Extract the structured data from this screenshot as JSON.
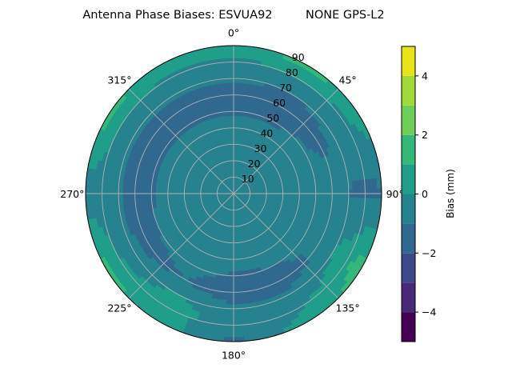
{
  "chart_data": {
    "type": "heatmap",
    "subtype": "polar filled contour",
    "title": "Antenna Phase Biases: ESVUA92         NONE GPS-L2",
    "theta_direction": "clockwise",
    "theta_zero": "north",
    "theta_tick_labels": [
      "0°",
      "45°",
      "90°",
      "135°",
      "180°",
      "225°",
      "270°",
      "315°"
    ],
    "r_tick_labels": [
      "10",
      "20",
      "30",
      "40",
      "50",
      "60",
      "70",
      "80",
      "90"
    ],
    "r_range": [
      0,
      90
    ],
    "grid": true,
    "colorbar": {
      "label": "Bias (mm)",
      "range": [
        -5,
        5
      ],
      "levels": [
        -5,
        -4,
        -3,
        -2,
        -1,
        0,
        1,
        2,
        3,
        4,
        5
      ],
      "tick_labels": [
        "−4",
        "−2",
        "0",
        "2",
        "4"
      ],
      "ticks": [
        -4,
        -2,
        0,
        2,
        4
      ],
      "colormap": "viridis",
      "colors": [
        "#440154",
        "#482878",
        "#3e4989",
        "#31688e",
        "#26828e",
        "#1f9e89",
        "#35b779",
        "#6ece58",
        "#a0da39",
        "#e5e419"
      ]
    },
    "grid_azimuth_deg": [
      0,
      30,
      60,
      90,
      120,
      150,
      180,
      210,
      240,
      270,
      300,
      330
    ],
    "grid_zenith_deg": [
      0,
      15,
      30,
      45,
      60,
      75,
      90
    ],
    "values_mm": [
      [
        -0.5,
        -0.5,
        -0.5,
        -0.5,
        -0.5,
        -0.5,
        -0.5,
        -0.5,
        -0.5,
        -0.5,
        -0.5,
        -0.5
      ],
      [
        -0.5,
        -0.5,
        -0.5,
        -0.5,
        -0.5,
        -0.5,
        -0.5,
        -0.5,
        -0.5,
        -0.5,
        -0.5,
        -0.5
      ],
      [
        -0.5,
        -0.5,
        -0.5,
        -0.5,
        -0.5,
        -0.5,
        -0.5,
        -0.5,
        -0.5,
        -0.5,
        -0.5,
        -0.5
      ],
      [
        -0.9,
        -0.9,
        -0.7,
        -0.5,
        -0.5,
        -0.8,
        -0.9,
        -0.7,
        -0.8,
        -0.9,
        -0.9,
        -0.9
      ],
      [
        -1.5,
        -1.5,
        -1.2,
        -0.5,
        -0.8,
        -1.5,
        -1.5,
        -1.0,
        -1.3,
        -1.5,
        -1.5,
        -1.5
      ],
      [
        -0.5,
        -0.8,
        -0.5,
        -1.2,
        0.5,
        -0.5,
        -0.5,
        0.5,
        -0.5,
        -0.5,
        -0.5,
        -0.5
      ],
      [
        0.5,
        1.5,
        0.5,
        -1.2,
        1.5,
        0.5,
        -1.2,
        0.5,
        1.5,
        -0.5,
        1.5,
        0.5
      ]
    ]
  }
}
